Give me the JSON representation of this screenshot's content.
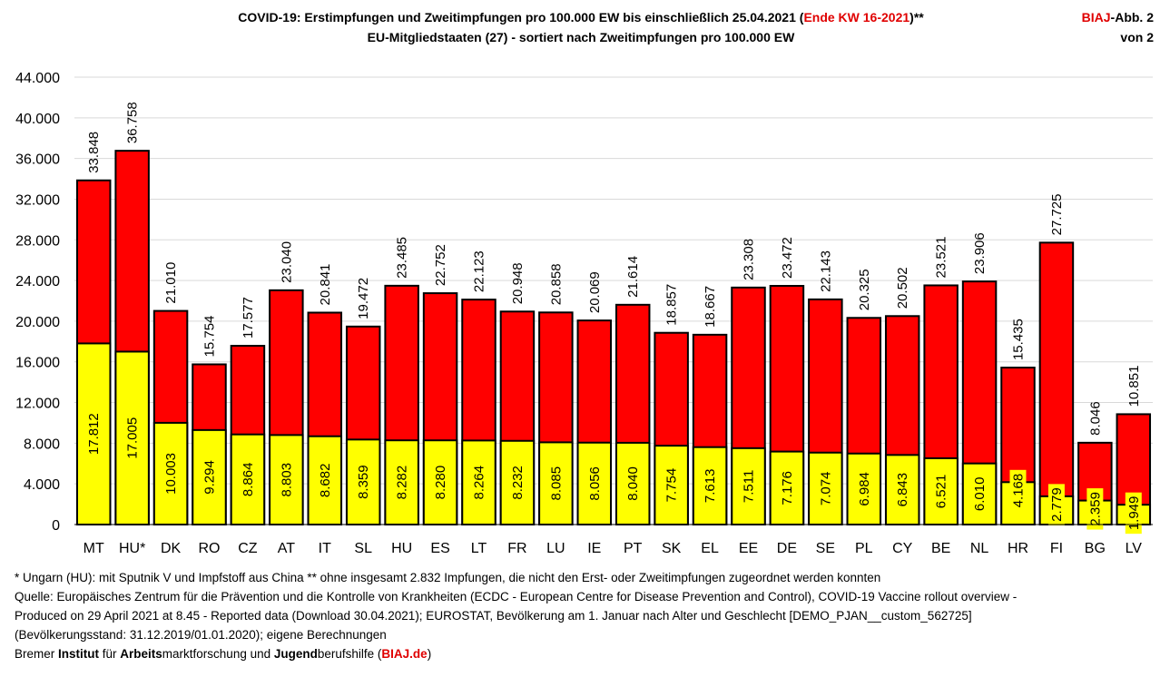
{
  "title": {
    "line1_a": "COVID-19: Erstimpfungen und Zweitimpfungen pro 100.000 EW bis einschließlich  25.04.2021 (",
    "line1_red": "Ende KW 16-2021",
    "line1_b": ")**",
    "line2": "EU-Mitgliedstaaten (27) - sortiert nach Zweitimpfungen pro 100.000 EW"
  },
  "badge": {
    "brand": "BIAJ",
    "suffix": "-Abb. 2",
    "line2": "von 2"
  },
  "colors": {
    "first": "#ff0000",
    "second": "#ffff00",
    "outline": "#000000"
  },
  "chart_data": {
    "type": "bar",
    "stacked": "overlay",
    "title": "COVID-19: Erstimpfungen und Zweitimpfungen pro 100.000 EW bis einschließlich 25.04.2021 (Ende KW 16-2021)**",
    "ylim": [
      0,
      44000
    ],
    "yticks": [
      "0",
      "4.000",
      "8.000",
      "12.000",
      "16.000",
      "20.000",
      "24.000",
      "28.000",
      "32.000",
      "36.000",
      "40.000",
      "44.000"
    ],
    "ytick_values": [
      0,
      4000,
      8000,
      12000,
      16000,
      20000,
      24000,
      28000,
      32000,
      36000,
      40000,
      44000
    ],
    "grid": true,
    "categories": [
      "MT",
      "HU*",
      "DK",
      "RO",
      "CZ",
      "AT",
      "IT",
      "SL",
      "HU",
      "ES",
      "LT",
      "FR",
      "LU",
      "IE",
      "PT",
      "SK",
      "EL",
      "EE",
      "DE",
      "SE",
      "PL",
      "CY",
      "BE",
      "NL",
      "HR",
      "FI",
      "BG",
      "LV"
    ],
    "series": [
      {
        "values": [
          33848,
          36758,
          21010,
          15754,
          17577,
          23040,
          20841,
          19472,
          23485,
          22752,
          22123,
          20948,
          20858,
          20069,
          21614,
          18857,
          18667,
          23308,
          23472,
          22143,
          20325,
          20502,
          23521,
          23906,
          15435,
          27725,
          8046,
          10851
        ],
        "labels": [
          "33.848",
          "36.758",
          "21.010",
          "15.754",
          "17.577",
          "23.040",
          "20.841",
          "19.472",
          "23.485",
          "22.752",
          "22.123",
          "20.948",
          "20.858",
          "20.069",
          "21.614",
          "18.857",
          "18.667",
          "23.308",
          "23.472",
          "22.143",
          "20.325",
          "20.502",
          "23.521",
          "23.906",
          "15.435",
          "27.725",
          "8.046",
          "10.851"
        ]
      },
      {
        "values": [
          17812,
          17005,
          10003,
          9294,
          8864,
          8803,
          8682,
          8359,
          8282,
          8280,
          8264,
          8232,
          8085,
          8056,
          8040,
          7754,
          7613,
          7511,
          7176,
          7074,
          6984,
          6843,
          6521,
          6010,
          4168,
          2779,
          2359,
          1949
        ],
        "labels": [
          "17.812",
          "17.005",
          "10.003",
          "9.294",
          "8.864",
          "8.803",
          "8.682",
          "8.359",
          "8.282",
          "8.280",
          "8.264",
          "8.232",
          "8.085",
          "8.056",
          "8.040",
          "7.754",
          "7.613",
          "7.511",
          "7.176",
          "7.074",
          "6.984",
          "6.843",
          "6.521",
          "6.010",
          "4.168",
          "2.779",
          "2.359",
          "1.949"
        ]
      }
    ]
  },
  "footnotes": {
    "line1": "* Ungarn (HU): mit Sputnik V und Impfstoff aus China ** ohne insgesamt 2.832 Impfungen, die nicht den Erst- oder Zweitimpfungen zugeordnet werden konnten",
    "line2": "Quelle: Europäisches Zentrum für die Prävention und die Kontrolle von Krankheiten (ECDC - European Centre for Disease Prevention and Control), COVID-19 Vaccine rollout overview -",
    "line3": "Produced on 29 April 2021 at 8.45 - Reported data (Download 30.04.2021); EUROSTAT, Bevölkerung am 1. Januar nach Alter und Geschlecht [DEMO_PJAN__custom_562725]",
    "line4": "(Bevölkerungsstand: 31.12.2019/01.01.2020); eigene Berechnungen",
    "line5_parts": [
      "Bremer ",
      "Institut",
      " für ",
      "Arbeits",
      "marktforschung und ",
      "Jugend",
      "berufshilfe (",
      "BIAJ.de",
      ")"
    ]
  }
}
